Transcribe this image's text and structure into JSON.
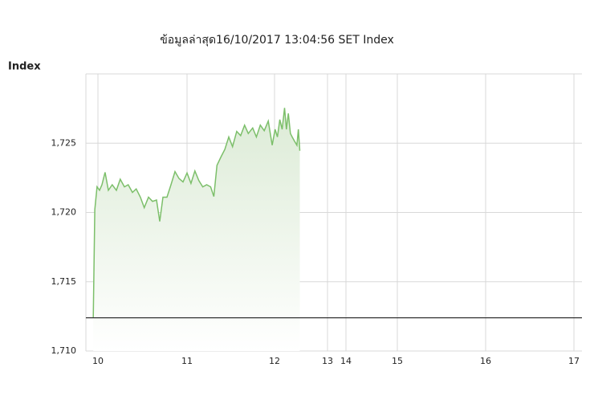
{
  "chart_data": {
    "type": "area-line",
    "title": "ข้อมูลล่าสุด16/10/2017 13:04:56  SET Index",
    "y_label": "Index",
    "ylim": [
      1710,
      1730
    ],
    "yticks": [
      {
        "value": 1710,
        "label": "1,710"
      },
      {
        "value": 1715,
        "label": "1,715"
      },
      {
        "value": 1720,
        "label": "1,720"
      },
      {
        "value": 1725,
        "label": "1,725"
      }
    ],
    "xlim": [
      9.86,
      17.1
    ],
    "xticks": [
      10,
      11,
      12,
      13,
      14,
      15,
      16,
      17
    ],
    "grid": true,
    "reference_line": {
      "value": 1712.4,
      "color": "#333333"
    },
    "series": [
      {
        "color": "#7cbf6a",
        "x": [
          9.946,
          9.964,
          9.99,
          10.018,
          10.045,
          10.08,
          10.117,
          10.16,
          10.207,
          10.25,
          10.297,
          10.34,
          10.387,
          10.43,
          10.477,
          10.52,
          10.568,
          10.613,
          10.658,
          10.694,
          10.73,
          10.775,
          10.82,
          10.865,
          10.91,
          10.955,
          11.0,
          11.045,
          11.09,
          11.135,
          11.18,
          11.225,
          11.27,
          11.306,
          11.342,
          11.387,
          11.432,
          11.477,
          11.52,
          11.568,
          11.613,
          11.658,
          11.7,
          11.75,
          11.793,
          11.838,
          11.883,
          11.928,
          11.973,
          12.01,
          12.054,
          12.1,
          12.144,
          12.19,
          12.225,
          12.26,
          12.3,
          12.333,
          12.378,
          12.423,
          12.45,
          12.477
        ],
        "values": [
          1712.4,
          1720.2,
          1721.85,
          1721.6,
          1722.0,
          1722.9,
          1721.6,
          1722.0,
          1721.6,
          1722.4,
          1721.85,
          1722.0,
          1721.45,
          1721.7,
          1721.1,
          1720.35,
          1721.1,
          1720.8,
          1720.9,
          1719.35,
          1721.1,
          1721.1,
          1722.0,
          1722.95,
          1722.45,
          1722.2,
          1722.85,
          1722.1,
          1723.0,
          1722.3,
          1721.85,
          1722.0,
          1721.85,
          1721.15,
          1723.4,
          1724.0,
          1724.55,
          1725.45,
          1724.75,
          1725.85,
          1725.55,
          1726.3,
          1725.7,
          1726.1,
          1725.45,
          1726.3,
          1725.9,
          1726.6,
          1724.85,
          1726.0,
          1725.45,
          1726.7,
          1726.0,
          1727.55,
          1726.0,
          1727.15,
          1725.7,
          1725.45,
          1725.15,
          1724.85,
          1726.0,
          1724.45
        ]
      }
    ]
  }
}
